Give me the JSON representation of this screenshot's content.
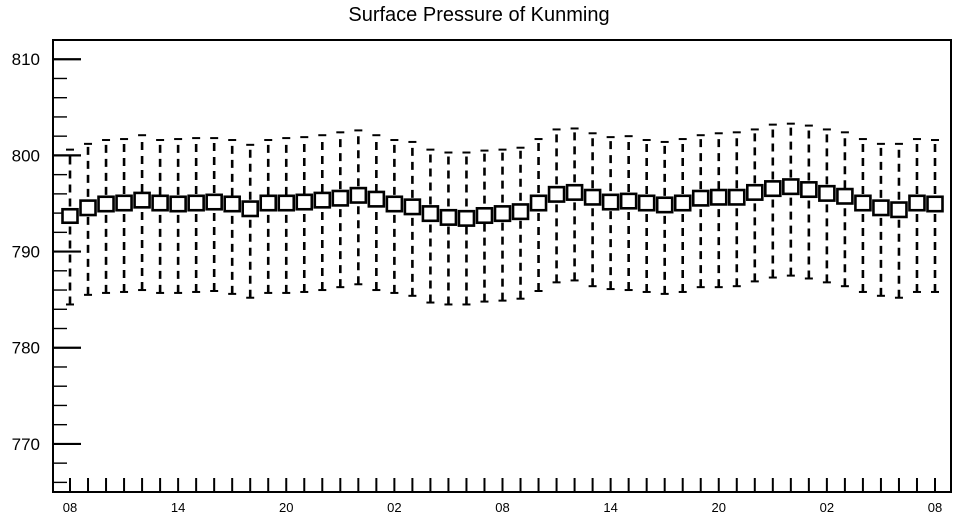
{
  "chart_data": {
    "type": "boxplot",
    "title": "Surface Pressure of Kunming",
    "xlabel": "",
    "ylabel": "",
    "ylim": [
      765,
      812
    ],
    "y_ticks": [
      770,
      780,
      790,
      800,
      810
    ],
    "x_tick_labels": [
      "08",
      "14",
      "20",
      "02",
      "08",
      "14",
      "20",
      "02",
      "08"
    ],
    "x_tick_label_every": 6,
    "grid": false,
    "legend": "none",
    "series": [
      {
        "hour": [
          "08",
          "09",
          "10",
          "11",
          "12",
          "13",
          "14",
          "15",
          "16",
          "17",
          "18",
          "19",
          "20",
          "21",
          "22",
          "23",
          "00",
          "01",
          "02",
          "03",
          "04",
          "05",
          "06",
          "07",
          "08",
          "09",
          "10",
          "11",
          "12",
          "13",
          "14",
          "15",
          "16",
          "17",
          "18",
          "19",
          "20",
          "21",
          "22",
          "23",
          "00",
          "01",
          "02",
          "03",
          "04",
          "05",
          "06",
          "07",
          "08"
        ],
        "center": [
          793.6,
          794.5,
          794.9,
          795.0,
          795.3,
          795.0,
          794.9,
          795.0,
          795.1,
          794.9,
          794.4,
          795.0,
          795.0,
          795.1,
          795.3,
          795.5,
          795.8,
          795.4,
          794.9,
          794.6,
          793.9,
          793.5,
          793.4,
          793.7,
          793.9,
          794.1,
          795.0,
          795.9,
          796.1,
          795.6,
          795.1,
          795.2,
          795.0,
          794.8,
          795.0,
          795.5,
          795.6,
          795.6,
          796.1,
          796.5,
          796.7,
          796.4,
          796.0,
          795.7,
          795.0,
          794.5,
          794.3,
          795.0,
          794.9
        ],
        "box_low": [
          793.0,
          793.8,
          794.2,
          794.3,
          794.6,
          794.3,
          794.2,
          794.3,
          794.4,
          794.2,
          793.7,
          794.3,
          794.3,
          794.4,
          794.6,
          794.8,
          795.1,
          794.7,
          794.2,
          793.9,
          793.2,
          792.8,
          792.7,
          793.0,
          793.2,
          793.4,
          794.3,
          795.2,
          795.4,
          794.9,
          794.4,
          794.5,
          794.3,
          794.1,
          794.3,
          794.8,
          794.9,
          794.9,
          795.4,
          795.8,
          796.0,
          795.7,
          795.3,
          795.0,
          794.3,
          793.8,
          793.6,
          794.3,
          794.2
        ],
        "box_high": [
          794.4,
          795.3,
          795.7,
          795.8,
          796.1,
          795.8,
          795.7,
          795.8,
          795.9,
          795.7,
          795.2,
          795.8,
          795.8,
          795.9,
          796.1,
          796.3,
          796.6,
          796.2,
          795.7,
          795.4,
          794.7,
          794.3,
          794.2,
          794.5,
          794.7,
          794.9,
          795.8,
          796.7,
          796.9,
          796.4,
          795.9,
          796.0,
          795.8,
          795.6,
          795.8,
          796.3,
          796.4,
          796.4,
          796.9,
          797.3,
          797.5,
          797.2,
          796.8,
          796.5,
          795.8,
          795.3,
          795.1,
          795.8,
          795.7
        ],
        "whisker_low": [
          784.5,
          785.5,
          785.7,
          785.8,
          786.0,
          785.7,
          785.7,
          785.8,
          785.9,
          785.6,
          785.2,
          785.7,
          785.7,
          785.8,
          786.0,
          786.3,
          786.6,
          786.0,
          785.7,
          785.4,
          784.7,
          784.5,
          784.5,
          784.8,
          784.9,
          785.1,
          785.9,
          786.8,
          787.0,
          786.4,
          786.1,
          786.0,
          785.8,
          785.6,
          785.8,
          786.3,
          786.3,
          786.4,
          786.9,
          787.3,
          787.5,
          787.2,
          786.8,
          786.4,
          785.8,
          785.4,
          785.2,
          785.8,
          785.8
        ],
        "whisker_high": [
          800.6,
          801.2,
          801.6,
          801.7,
          802.1,
          801.6,
          801.7,
          801.8,
          801.8,
          801.6,
          801.1,
          801.6,
          801.8,
          801.9,
          802.1,
          802.4,
          802.6,
          802.1,
          801.6,
          801.4,
          800.6,
          800.3,
          800.3,
          800.5,
          800.6,
          800.8,
          801.7,
          802.7,
          802.8,
          802.3,
          801.9,
          802.0,
          801.6,
          801.4,
          801.7,
          802.1,
          802.3,
          802.4,
          802.7,
          803.2,
          803.3,
          803.1,
          802.7,
          802.4,
          801.7,
          801.2,
          801.2,
          801.7,
          801.6
        ]
      }
    ]
  }
}
